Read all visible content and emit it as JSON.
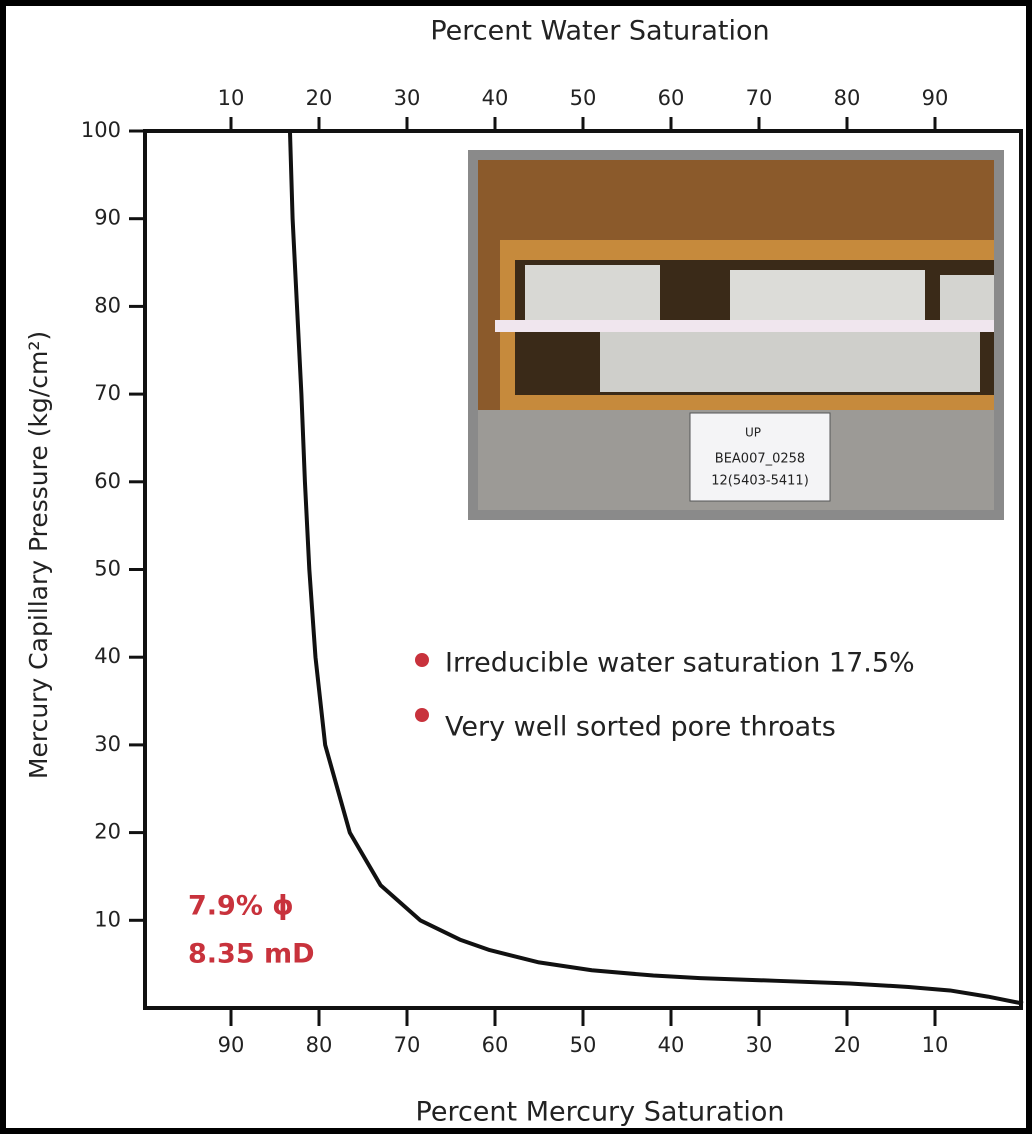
{
  "chart_data": {
    "type": "line",
    "title": "Percent Water Saturation",
    "xlabel": "Percent Mercury Saturation",
    "ylabel": "Mercury Capillary Pressure (kg/cm²)",
    "x2lim": [
      0,
      100
    ],
    "x2ticks": [
      10,
      20,
      30,
      40,
      50,
      60,
      70,
      80,
      90
    ],
    "xlim": [
      100,
      0
    ],
    "xticks": [
      90,
      80,
      70,
      60,
      50,
      40,
      30,
      20,
      10
    ],
    "ylim": [
      0,
      100
    ],
    "yticks": [
      10,
      20,
      30,
      40,
      50,
      60,
      70,
      80,
      90,
      100
    ],
    "series": [
      {
        "color": "#111111",
        "x": [
          83.3,
          83,
          82.5,
          82,
          81.6,
          81.1,
          80.4,
          79.3,
          76.5,
          73,
          68.5,
          64,
          60.6,
          55,
          49,
          42,
          36.7,
          28,
          19.7,
          13,
          8.3,
          4,
          0
        ],
        "values": [
          100,
          90,
          80,
          70,
          60,
          50,
          40,
          30,
          20,
          14,
          10,
          7.8,
          6.6,
          5.2,
          4.3,
          3.7,
          3.4,
          3.1,
          2.8,
          2.4,
          2,
          1.3,
          0.5
        ]
      }
    ],
    "annotations": [
      "Irreducible water saturation 17.5%",
      "Very well sorted pore throats"
    ],
    "stats": [
      "7.9% ϕ",
      "8.35 mD"
    ],
    "photo_label": [
      "UP",
      "BEA007_0258",
      "12(5403-5411)"
    ]
  }
}
